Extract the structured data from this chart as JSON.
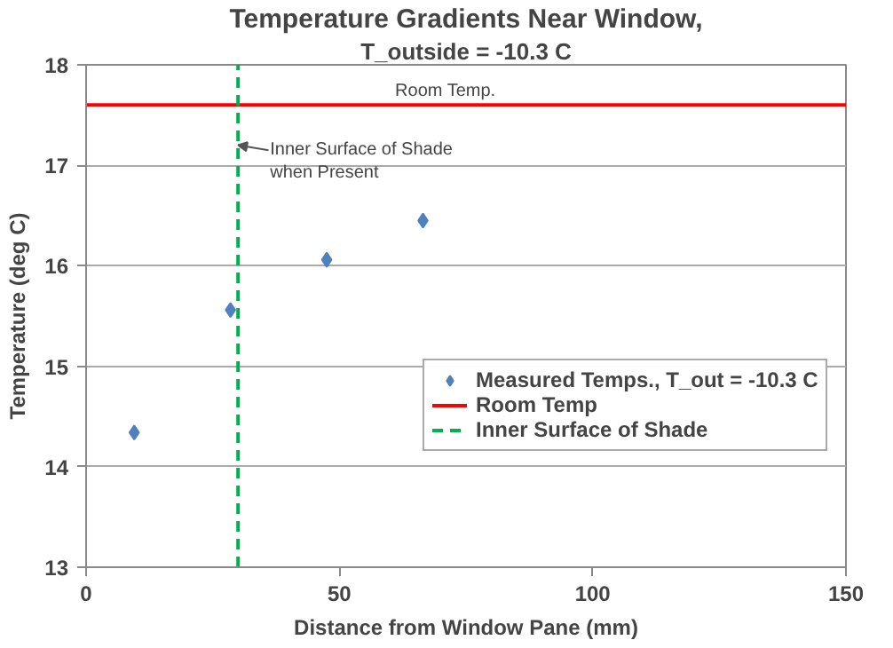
{
  "chart_data": {
    "type": "scatter",
    "title": "Temperature Gradients Near Window,",
    "subtitle": "T_outside = -10.3 C",
    "xlabel": "Distance from Window Pane (mm)",
    "ylabel": "Temperature (deg C)",
    "series": [
      {
        "name": "Measured Temps., T_out = -10.3 C",
        "marker": "diamond",
        "color": "#4f81bd",
        "x": [
          9.5,
          28.5,
          47.5,
          66.5
        ],
        "values": [
          14.34,
          15.56,
          16.06,
          16.45
        ]
      },
      {
        "name": "Room Temp",
        "type": "line",
        "line_style": "solid",
        "color": "#ff0000",
        "x": [
          0,
          150
        ],
        "values": [
          17.6,
          17.6
        ]
      },
      {
        "name": "Inner Surface of Shade",
        "type": "line",
        "line_style": "dashed",
        "color": "#00b050",
        "x": [
          30,
          30
        ],
        "values": [
          13,
          18
        ]
      }
    ],
    "annotations": [
      {
        "text": "Room Temp.",
        "x": 61,
        "y": 17.6
      },
      {
        "text": "Inner Surface of Shade\nwhen Present",
        "x": 30,
        "y": 17.2
      }
    ],
    "xlim": [
      0,
      150
    ],
    "ylim": [
      13,
      18
    ],
    "xticks": [
      0,
      50,
      100,
      150
    ],
    "yticks": [
      13,
      14,
      15,
      16,
      17,
      18
    ],
    "grid": "y",
    "legend": "right"
  }
}
